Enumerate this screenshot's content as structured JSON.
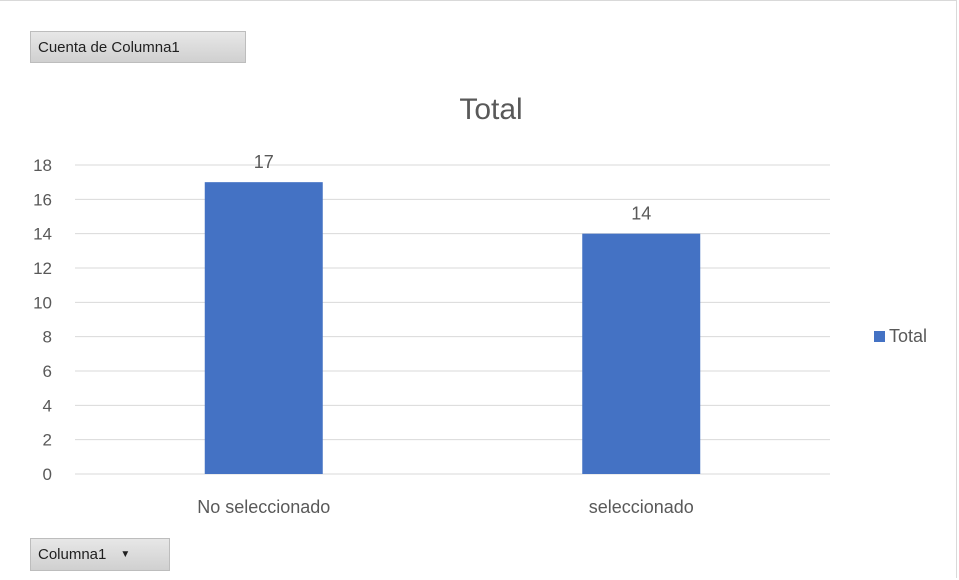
{
  "pivot_buttons": {
    "values_field": "Cuenta de Columna1",
    "axis_field": "Columna1",
    "axis_arrow": "▼"
  },
  "colors": {
    "bar": "#4472c4",
    "grid": "#d9d9d9",
    "text": "#595959"
  },
  "chart_data": {
    "type": "bar",
    "title": "Total",
    "categories": [
      "No seleccionado",
      "seleccionado"
    ],
    "series": [
      {
        "name": "Total",
        "values": [
          17,
          14
        ]
      }
    ],
    "ylim": [
      0,
      18
    ],
    "yticks": [
      0,
      2,
      4,
      6,
      8,
      10,
      12,
      14,
      16,
      18
    ],
    "grid": true,
    "legend_position": "right",
    "data_labels": true
  }
}
